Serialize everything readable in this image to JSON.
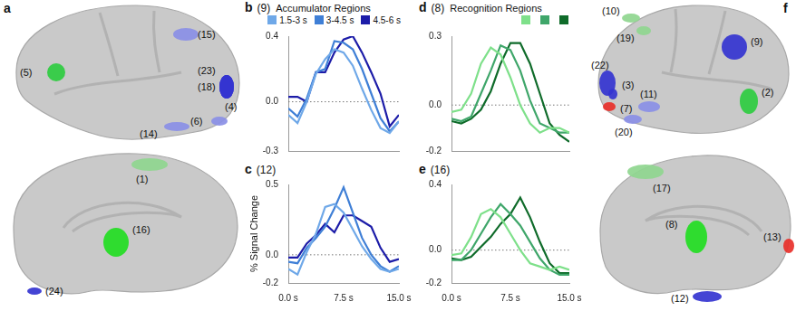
{
  "brain_maps": [
    {
      "panel": "a",
      "views": [
        [
          {
            "label": "(15)",
            "color": "#8a8fe6"
          },
          {
            "label": "(5)",
            "color": "#2ecc40"
          },
          {
            "label": "(23)",
            "color": "#3434d0"
          },
          {
            "label": "(18)",
            "color": "#3434d0"
          },
          {
            "label": "(4)",
            "color": "#3434d0"
          },
          {
            "label": "(6)",
            "color": "#8a8fe6"
          },
          {
            "label": "(14)",
            "color": "#8a8fe6"
          }
        ],
        [
          {
            "label": "(1)",
            "color": "#8fd68f"
          },
          {
            "label": "(16)",
            "color": "#22dd22"
          },
          {
            "label": "(24)",
            "color": "#3434d0"
          }
        ]
      ]
    },
    {
      "panel": "f",
      "views": [
        [
          {
            "label": "(10)",
            "color": "#8fd68f"
          },
          {
            "label": "(19)",
            "color": "#8fd68f"
          },
          {
            "label": "(22)",
            "color": "#3434d0"
          },
          {
            "label": "(3)",
            "color": "#3434d0"
          },
          {
            "label": "(7)",
            "color": "#e8302a"
          },
          {
            "label": "(11)",
            "color": "#8a8fe6"
          },
          {
            "label": "(20)",
            "color": "#8a8fe6"
          },
          {
            "label": "(9)",
            "color": "#3434d0"
          },
          {
            "label": "(2)",
            "color": "#2ecc40"
          }
        ],
        [
          {
            "label": "(17)",
            "color": "#8fd68f"
          },
          {
            "label": "(8)",
            "color": "#22dd22"
          },
          {
            "label": "(13)",
            "color": "#e8302a"
          },
          {
            "label": "(12)",
            "color": "#3434d0"
          }
        ]
      ]
    }
  ],
  "chart_data": [
    {
      "panel": "b",
      "type": "line",
      "title": "(9)",
      "subtitle": "Accumulator Regions",
      "x": [
        0,
        1.25,
        2.5,
        3.75,
        5,
        6.25,
        7.5,
        8.75,
        10,
        11.25,
        12.5,
        13.75,
        15
      ],
      "series": [
        {
          "name": "1.5-3 s",
          "color": "#6fa8e8",
          "values": [
            -0.08,
            -0.13,
            0,
            0.17,
            0.26,
            0.32,
            0.3,
            0.22,
            0.08,
            -0.05,
            -0.16,
            -0.19,
            -0.12
          ]
        },
        {
          "name": "3-4.5 s",
          "color": "#3f7fd6",
          "values": [
            -0.04,
            -0.09,
            0.02,
            0.18,
            0.2,
            0.37,
            0.36,
            0.32,
            0.2,
            0.05,
            -0.1,
            -0.18,
            -0.12
          ]
        },
        {
          "name": "4.5-6 s",
          "color": "#1c1ca8",
          "values": [
            0.03,
            0.03,
            0,
            0.18,
            0.18,
            0.3,
            0.38,
            0.4,
            0.3,
            0.18,
            0.05,
            -0.15,
            -0.08
          ]
        }
      ],
      "xlim": [
        0,
        15
      ],
      "ylim": [
        -0.3,
        0.4
      ],
      "yticks": [
        -0.3,
        {
          "value": 0,
          "label": "0.0"
        },
        0.4
      ],
      "legend": "top",
      "tick_labels": "y"
    },
    {
      "panel": "c",
      "type": "line",
      "title": "(12)",
      "ylabel": "% Signal Change",
      "x": [
        0,
        1.25,
        2.5,
        3.75,
        5,
        6.25,
        7.5,
        8.75,
        10,
        11.25,
        12.5,
        13.75,
        15
      ],
      "series": [
        {
          "name": "1.5-3 s",
          "color": "#6fa8e8",
          "values": [
            -0.1,
            -0.14,
            0.02,
            0.15,
            0.34,
            0.36,
            0.3,
            0.18,
            0.06,
            -0.03,
            -0.1,
            -0.12,
            -0.1
          ]
        },
        {
          "name": "3-4.5 s",
          "color": "#3f7fd6",
          "values": [
            -0.05,
            -0.06,
            0.05,
            0.12,
            0.2,
            0.33,
            0.48,
            0.3,
            0.12,
            0,
            -0.08,
            -0.12,
            -0.08
          ]
        },
        {
          "name": "4.5-6 s",
          "color": "#1c1ca8",
          "values": [
            -0.02,
            -0.02,
            0.08,
            0.14,
            0.22,
            0.16,
            0.28,
            0.28,
            0.24,
            0.2,
            0.05,
            -0.05,
            -0.03
          ]
        }
      ],
      "xlim": [
        0,
        15
      ],
      "ylim": [
        -0.2,
        0.5
      ],
      "xticks": [
        {
          "value": 0,
          "label": "0.0 s"
        },
        {
          "value": 7.5,
          "label": "7.5 s"
        },
        {
          "value": 15,
          "label": "15.0 s"
        }
      ],
      "yticks": [
        -0.2,
        {
          "value": 0,
          "label": "0.0"
        },
        0.5
      ]
    },
    {
      "panel": "d",
      "type": "line",
      "title": "(8)",
      "subtitle": "Recognition Regions",
      "x": [
        0,
        1.25,
        2.5,
        3.75,
        5,
        6.25,
        7.5,
        8.75,
        10,
        11.25,
        12.5,
        13.75,
        15
      ],
      "series": [
        {
          "color": "#7ee08a",
          "values": [
            -0.03,
            -0.02,
            0.05,
            0.18,
            0.25,
            0.22,
            0.12,
            0,
            -0.08,
            -0.12,
            -0.1,
            -0.1,
            -0.12
          ]
        },
        {
          "color": "#3fa66a",
          "values": [
            -0.06,
            -0.07,
            -0.05,
            0.05,
            0.15,
            0.26,
            0.24,
            0.15,
            0.02,
            -0.08,
            -0.1,
            -0.12,
            -0.12
          ]
        },
        {
          "color": "#0f6b2a",
          "values": [
            -0.07,
            -0.08,
            -0.06,
            -0.02,
            0.06,
            0.18,
            0.27,
            0.27,
            0.18,
            0.05,
            -0.08,
            -0.13,
            -0.16
          ]
        }
      ],
      "xlim": [
        0,
        15
      ],
      "ylim": [
        -0.2,
        0.3
      ],
      "yticks": [
        -0.2,
        {
          "value": 0,
          "label": "0.0"
        },
        0.3
      ],
      "legend": "top",
      "tick_labels": "y"
    },
    {
      "panel": "e",
      "type": "line",
      "title": "(16)",
      "x": [
        0,
        1.25,
        2.5,
        3.75,
        5,
        6.25,
        7.5,
        8.75,
        10,
        11.25,
        12.5,
        13.75,
        15
      ],
      "series": [
        {
          "color": "#7ee08a",
          "values": [
            -0.03,
            -0.02,
            0.08,
            0.22,
            0.25,
            0.2,
            0.1,
            0,
            -0.08,
            -0.1,
            -0.12,
            -0.1,
            -0.12
          ]
        },
        {
          "color": "#3fa66a",
          "values": [
            -0.06,
            -0.06,
            0,
            0.1,
            0.2,
            0.28,
            0.22,
            0.15,
            0.05,
            -0.05,
            -0.12,
            -0.15,
            -0.15
          ]
        },
        {
          "color": "#0f6b2a",
          "values": [
            -0.05,
            -0.06,
            -0.04,
            0.02,
            0.08,
            0.16,
            0.22,
            0.32,
            0.2,
            0.05,
            -0.08,
            -0.14,
            -0.14
          ]
        }
      ],
      "xlim": [
        0,
        15
      ],
      "ylim": [
        -0.2,
        0.4
      ],
      "xticks": [
        {
          "value": 0,
          "label": "0.0 s"
        },
        {
          "value": 7.5,
          "label": "7.5 s"
        },
        {
          "value": 15,
          "label": "15.0 s"
        }
      ],
      "yticks": [
        -0.2,
        {
          "value": 0,
          "label": "0.0"
        },
        0.4
      ]
    }
  ]
}
